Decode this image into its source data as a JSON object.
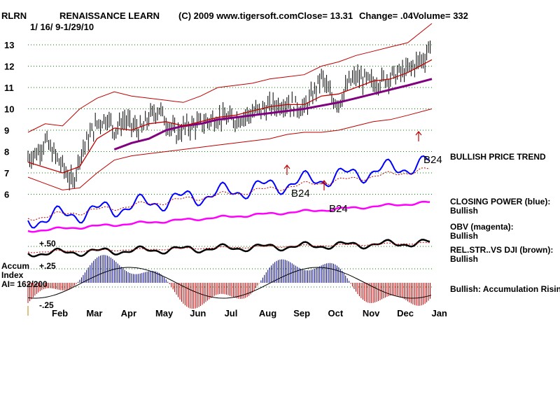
{
  "header": {
    "symbol": "RLRN",
    "company": "RENAISSANCE LEARN",
    "copyright": "(C) 2009 www.tigersoft.com",
    "close": "Close=  13.31",
    "change": "Change= .04",
    "volume": "Volume= 332",
    "date_range": "1/ 16/ 9-1/29/10"
  },
  "colors": {
    "price": "#000000",
    "bands": "#c00000",
    "ma_short": "#c00000",
    "ma_long": "#800080",
    "closing_power": "#0000ff",
    "obv": "#ff00ff",
    "rel_strength": "#000000",
    "accum_positive": "#000080",
    "accum_negative": "#c00000",
    "grid": "#008000"
  },
  "indicator_labels": {
    "bullish_trend": "BULLISH PRICE TREND",
    "closing_power": "CLOSING POWER (blue):",
    "closing_power_status": "Bullish",
    "obv": "OBV (magenta):",
    "obv_status": "Bullish",
    "rel_str": "REL.STR..VS DJI (brown):",
    "rel_str_status": "Bullish",
    "accum": "Bullish: Accumulation Rising"
  },
  "accum_labels": {
    "title1": "Accum",
    "title2": "Index",
    "ai": "AI= 162/200",
    "plus50": "+.50",
    "plus25": "+.25",
    "minus25": "-.25"
  },
  "signals": [
    {
      "label": "B24",
      "month_pos": 8.3
    },
    {
      "label": "B24",
      "month_pos": 9.15
    },
    {
      "label": "B24",
      "month_pos": 11.7
    }
  ],
  "chart_data": {
    "type": "line",
    "title": "RLRN RENAISSANCE LEARN",
    "y_ticks": [
      6,
      7,
      8,
      9,
      10,
      11,
      12,
      13
    ],
    "ylim": [
      5.6,
      13.5
    ],
    "x_labels": [
      "Feb",
      "Mar",
      "Apr",
      "May",
      "Jun",
      "Jul",
      "Aug",
      "Sep",
      "Oct",
      "Nov",
      "Dec",
      "Jan"
    ],
    "series": [
      {
        "points": [
          [
            0,
            7.7
          ],
          [
            0.3,
            8.0
          ],
          [
            0.5,
            8.5
          ],
          [
            0.7,
            8.0
          ],
          [
            1.0,
            7.3
          ],
          [
            1.3,
            6.5
          ],
          [
            1.5,
            7.8
          ],
          [
            1.8,
            8.8
          ],
          [
            2.0,
            9.3
          ],
          [
            2.3,
            9.6
          ],
          [
            2.5,
            9.0
          ],
          [
            2.8,
            9.5
          ],
          [
            3.0,
            9.2
          ],
          [
            3.3,
            9.0
          ],
          [
            3.5,
            9.6
          ],
          [
            3.8,
            10.0
          ],
          [
            4.0,
            9.4
          ],
          [
            4.3,
            8.8
          ],
          [
            4.5,
            9.1
          ],
          [
            5.0,
            9.3
          ],
          [
            5.5,
            9.6
          ],
          [
            6.0,
            9.5
          ],
          [
            6.5,
            9.8
          ],
          [
            7.0,
            10.1
          ],
          [
            7.5,
            10.3
          ],
          [
            8.0,
            10.0
          ],
          [
            8.3,
            10.8
          ],
          [
            8.5,
            11.5
          ],
          [
            8.8,
            10.5
          ],
          [
            9.0,
            10.3
          ],
          [
            9.3,
            11.2
          ],
          [
            9.5,
            11.5
          ],
          [
            10.0,
            11.2
          ],
          [
            10.5,
            11.5
          ],
          [
            11.0,
            11.8
          ],
          [
            11.3,
            12.2
          ],
          [
            11.5,
            12.4
          ],
          [
            11.7,
            13.3
          ]
        ]
      },
      {
        "points": [
          [
            2.5,
            8.1
          ],
          [
            3.0,
            8.4
          ],
          [
            3.5,
            8.6
          ],
          [
            4.0,
            9.0
          ],
          [
            4.5,
            9.2
          ],
          [
            5.0,
            9.3
          ],
          [
            5.5,
            9.5
          ],
          [
            6.0,
            9.6
          ],
          [
            7.0,
            9.8
          ],
          [
            8.0,
            10.0
          ],
          [
            9.0,
            10.3
          ],
          [
            9.5,
            10.5
          ],
          [
            10.0,
            10.7
          ],
          [
            10.5,
            10.9
          ],
          [
            11.0,
            11.1
          ],
          [
            11.7,
            11.4
          ]
        ]
      },
      {
        "points": [
          [
            0,
            7.5
          ],
          [
            1.0,
            7.0
          ],
          [
            1.5,
            7.3
          ],
          [
            2.0,
            8.6
          ],
          [
            2.5,
            9.1
          ],
          [
            3.0,
            9.0
          ],
          [
            3.5,
            9.3
          ],
          [
            4.0,
            9.4
          ],
          [
            4.5,
            9.2
          ],
          [
            5.0,
            9.4
          ],
          [
            5.5,
            9.6
          ],
          [
            6.0,
            9.7
          ],
          [
            6.5,
            9.9
          ],
          [
            7.0,
            10.1
          ],
          [
            7.5,
            10.2
          ],
          [
            8.0,
            10.2
          ],
          [
            8.5,
            10.6
          ],
          [
            9.0,
            10.7
          ],
          [
            9.5,
            11.0
          ],
          [
            10.0,
            11.3
          ],
          [
            10.5,
            11.4
          ],
          [
            11.0,
            11.7
          ],
          [
            11.7,
            12.3
          ]
        ]
      },
      {
        "points": [
          [
            0,
            8.9
          ],
          [
            0.5,
            9.3
          ],
          [
            1.0,
            9.2
          ],
          [
            1.5,
            10.0
          ],
          [
            2.0,
            10.5
          ],
          [
            2.5,
            10.8
          ],
          [
            3.0,
            10.6
          ],
          [
            3.5,
            10.5
          ],
          [
            4.0,
            10.4
          ],
          [
            4.5,
            10.3
          ],
          [
            5.0,
            10.6
          ],
          [
            5.5,
            11.0
          ],
          [
            6.0,
            11.1
          ],
          [
            6.5,
            11.2
          ],
          [
            7.0,
            11.4
          ],
          [
            7.5,
            11.5
          ],
          [
            8.0,
            11.6
          ],
          [
            8.5,
            12.0
          ],
          [
            9.0,
            12.2
          ],
          [
            9.5,
            12.5
          ],
          [
            10.0,
            12.7
          ],
          [
            10.5,
            12.9
          ],
          [
            11.0,
            13.1
          ],
          [
            11.7,
            14.0
          ]
        ]
      },
      {
        "points": [
          [
            0,
            6.8
          ],
          [
            0.5,
            6.5
          ],
          [
            1.0,
            6.2
          ],
          [
            1.5,
            6.3
          ],
          [
            2.0,
            7.0
          ],
          [
            2.5,
            7.6
          ],
          [
            3.0,
            7.8
          ],
          [
            3.5,
            7.9
          ],
          [
            4.0,
            8.0
          ],
          [
            4.5,
            8.1
          ],
          [
            5.0,
            8.2
          ],
          [
            5.5,
            8.3
          ],
          [
            6.0,
            8.4
          ],
          [
            6.5,
            8.5
          ],
          [
            7.0,
            8.6
          ],
          [
            7.5,
            8.8
          ],
          [
            8.0,
            8.9
          ],
          [
            8.5,
            8.9
          ],
          [
            9.0,
            9.0
          ],
          [
            9.5,
            9.2
          ],
          [
            10.0,
            9.4
          ],
          [
            10.5,
            9.5
          ],
          [
            11.0,
            9.7
          ],
          [
            11.7,
            10.0
          ]
        ]
      }
    ]
  }
}
